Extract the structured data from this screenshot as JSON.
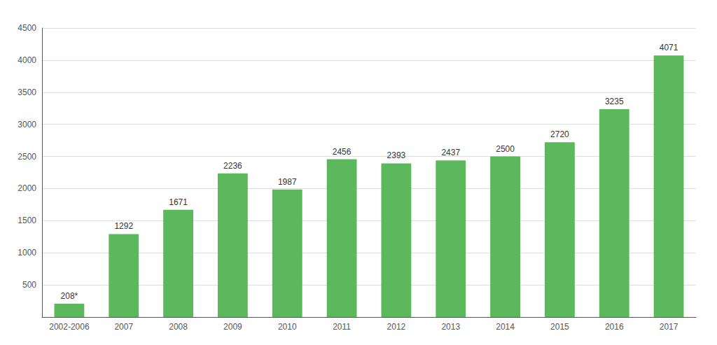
{
  "chart_data": {
    "type": "bar",
    "categories": [
      "2002-2006",
      "2007",
      "2008",
      "2009",
      "2010",
      "2011",
      "2012",
      "2013",
      "2014",
      "2015",
      "2016",
      "2017"
    ],
    "values": [
      208,
      1292,
      1671,
      2236,
      1987,
      2456,
      2393,
      2437,
      2500,
      2720,
      3235,
      4071
    ],
    "value_labels": [
      "208*",
      "1292",
      "1671",
      "2236",
      "1987",
      "2456",
      "2393",
      "2437",
      "2500",
      "2720",
      "3235",
      "4071"
    ],
    "data_labels": true,
    "color": "#5cb85c",
    "ylim": [
      0,
      4500
    ],
    "yticks": [
      500,
      1000,
      1500,
      2000,
      2500,
      3000,
      3500,
      4000,
      4500
    ],
    "grid": true
  }
}
